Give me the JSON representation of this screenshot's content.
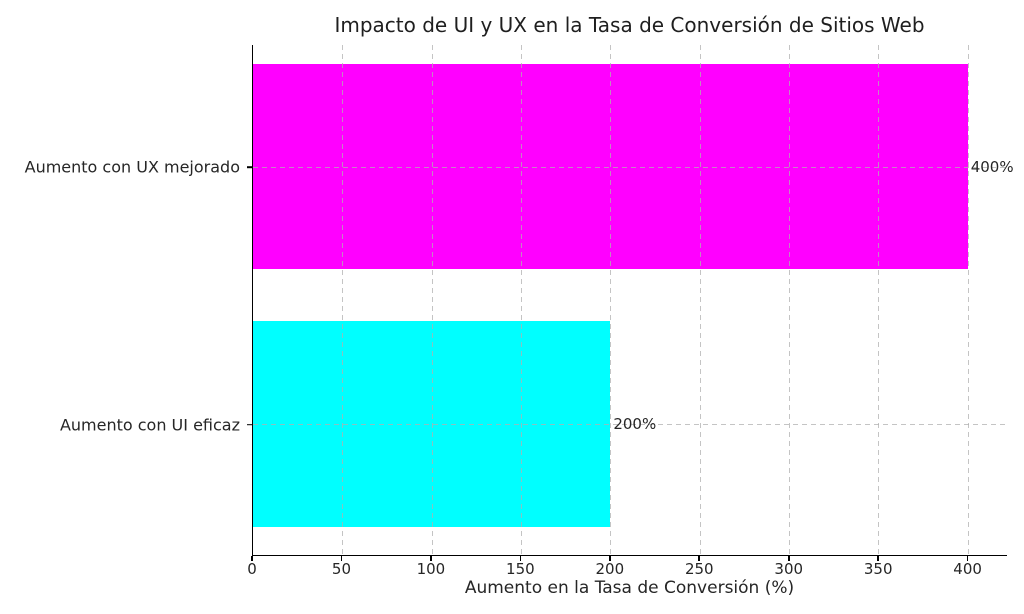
{
  "chart_data": {
    "type": "bar",
    "orientation": "horizontal",
    "title": "Impacto de UI y UX en la Tasa de Conversión de Sitios Web",
    "xlabel": "Aumento en la Tasa de Conversión (%)",
    "ylabel": "",
    "categories": [
      "Aumento con UX mejorado",
      "Aumento con UI eficaz"
    ],
    "values": [
      400,
      200
    ],
    "value_labels": [
      "400%",
      "200%"
    ],
    "bar_colors": [
      "#ff00ff",
      "#00ffff"
    ],
    "xlim": [
      0,
      422
    ],
    "xticks": [
      0,
      50,
      100,
      150,
      200,
      250,
      300,
      350,
      400
    ],
    "grid": true,
    "grid_style": "dashed",
    "grid_color": "#b0b0b0",
    "legend": "none",
    "background_color": "#ffffff",
    "text_color": "#262626"
  }
}
